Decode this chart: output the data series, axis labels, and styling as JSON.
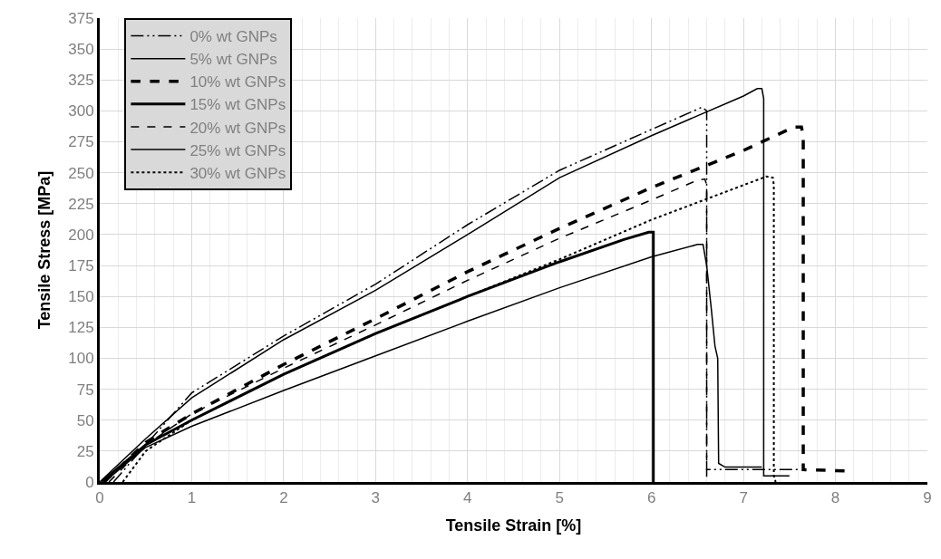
{
  "chart_data": {
    "type": "line",
    "xlabel": "Tensile Strain [%]",
    "ylabel": "Tensile Stress [MPa]",
    "xlim": [
      0,
      9
    ],
    "xticks": [
      0,
      1,
      2,
      3,
      4,
      5,
      6,
      7,
      8,
      9
    ],
    "ylim": [
      0,
      375
    ],
    "yticks": [
      0,
      25,
      50,
      75,
      100,
      125,
      150,
      175,
      200,
      225,
      250,
      275,
      300,
      325,
      350,
      375
    ],
    "grid": true,
    "legend": "top left",
    "marker": "none",
    "series": [
      {
        "name": "0% wt GNPs",
        "color": "#000000",
        "line_style": "dashdot",
        "x": [
          0.15,
          0.5,
          1,
          2,
          3,
          4,
          5,
          6,
          6.55,
          6.6,
          6.6,
          7.6
        ],
        "values": [
          0,
          30,
          72,
          118,
          160,
          208,
          252,
          285,
          303,
          300,
          10,
          10
        ]
      },
      {
        "name": "5% wt GNPs",
        "color": "#000000",
        "line_style": "solid",
        "x": [
          0,
          0.5,
          1,
          2,
          3,
          4,
          5,
          6,
          7,
          7.15,
          7.2,
          7.22,
          7.22,
          7.5
        ],
        "values": [
          0,
          35,
          68,
          115,
          155,
          200,
          246,
          280,
          312,
          318,
          318,
          310,
          5,
          5
        ]
      },
      {
        "name": "10% wt GNPs",
        "color": "#000000",
        "line_style": "dashed",
        "x": [
          0.05,
          0.5,
          1,
          2,
          3,
          4,
          5,
          6,
          7,
          7.55,
          7.63,
          7.65,
          7.65,
          8.1
        ],
        "values": [
          0,
          32,
          55,
          95,
          132,
          170,
          205,
          238,
          268,
          287,
          287,
          280,
          10,
          9
        ]
      },
      {
        "name": "15% wt GNPs",
        "color": "#000000",
        "line_style": "solid",
        "x": [
          0.02,
          0.5,
          1,
          2,
          3,
          4,
          5,
          5.7,
          5.97,
          6.02,
          6.02
        ],
        "values": [
          0,
          30,
          50,
          87,
          120,
          150,
          178,
          196,
          202,
          202,
          0
        ]
      },
      {
        "name": "20% wt GNPs",
        "color": "#000000",
        "line_style": "dashed",
        "x": [
          0.1,
          0.5,
          1,
          2,
          3,
          4,
          5,
          6,
          6.5,
          6.58,
          6.6,
          6.6
        ],
        "values": [
          0,
          30,
          55,
          92,
          127,
          163,
          197,
          228,
          244,
          245,
          240,
          0
        ]
      },
      {
        "name": "25% wt GNPs",
        "color": "#000000",
        "line_style": "solid",
        "x": [
          0.05,
          0.5,
          1,
          2,
          3,
          4,
          5,
          6,
          6.5,
          6.56,
          6.6,
          6.65,
          6.69,
          6.72,
          6.73,
          6.8,
          7.2
        ],
        "values": [
          0,
          28,
          45,
          74,
          102,
          130,
          157,
          182,
          192,
          192,
          175,
          140,
          110,
          100,
          15,
          12,
          12
        ]
      },
      {
        "name": "30% wt GNPs",
        "color": "#000000",
        "line_style": "dotted",
        "x": [
          0.25,
          0.5,
          1,
          2,
          3,
          4,
          5,
          6,
          7,
          7.25,
          7.32,
          7.33,
          7.33,
          7.35
        ],
        "values": [
          0,
          25,
          50,
          87,
          120,
          150,
          180,
          212,
          240,
          247,
          246,
          240,
          5,
          0
        ]
      }
    ]
  }
}
